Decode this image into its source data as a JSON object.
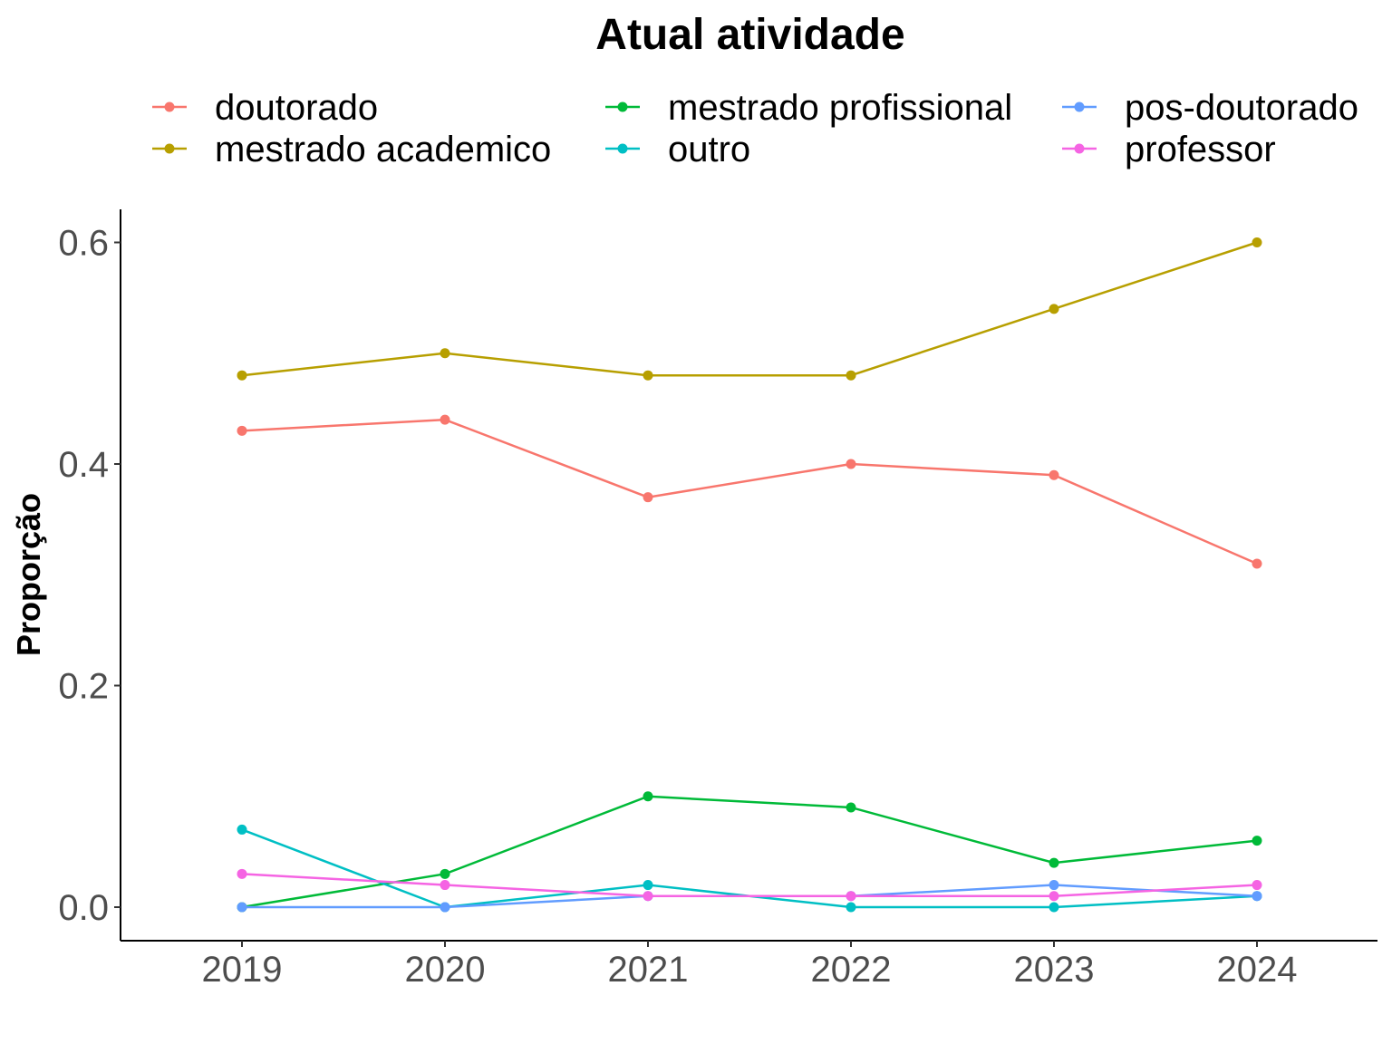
{
  "chart_data": {
    "type": "line",
    "legend_title": "Atual atividade",
    "legend_position": "top",
    "xlabel": "",
    "ylabel": "Proporção",
    "x": [
      2019,
      2020,
      2021,
      2022,
      2023,
      2024
    ],
    "x_tick_labels": [
      "2019",
      "2020",
      "2021",
      "2022",
      "2023",
      "2024"
    ],
    "y_ticks": [
      0.0,
      0.2,
      0.4,
      0.6
    ],
    "y_tick_labels": [
      "0.0",
      "0.2",
      "0.4",
      "0.6"
    ],
    "ylim": [
      -0.03,
      0.63
    ],
    "grid": false,
    "series": [
      {
        "name": "doutorado",
        "color": "#F8766D",
        "values": [
          0.43,
          0.44,
          0.37,
          0.4,
          0.39,
          0.31
        ]
      },
      {
        "name": "mestrado academico",
        "color": "#B79F00",
        "values": [
          0.48,
          0.5,
          0.48,
          0.48,
          0.54,
          0.6
        ]
      },
      {
        "name": "mestrado profissional",
        "color": "#00BA38",
        "values": [
          0.0,
          0.03,
          0.1,
          0.09,
          0.04,
          0.06
        ]
      },
      {
        "name": "outro",
        "color": "#00BFC4",
        "values": [
          0.07,
          0.0,
          0.02,
          0.0,
          0.0,
          0.01
        ]
      },
      {
        "name": "pos-doutorado",
        "color": "#619CFF",
        "values": [
          0.0,
          0.0,
          0.01,
          0.01,
          0.02,
          0.01
        ]
      },
      {
        "name": "professor",
        "color": "#F564E3",
        "values": [
          0.03,
          0.02,
          0.01,
          0.01,
          0.01,
          0.02
        ]
      }
    ]
  }
}
